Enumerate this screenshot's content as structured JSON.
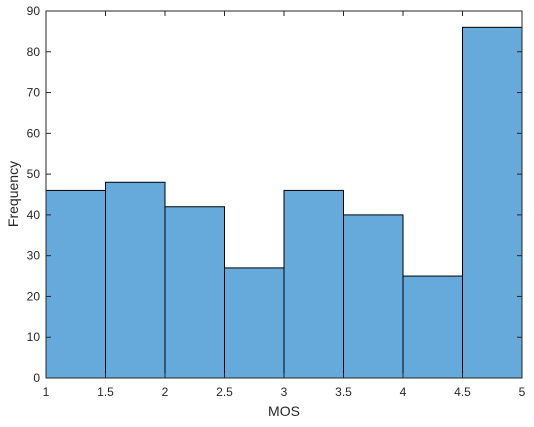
{
  "chart_data": {
    "type": "bar",
    "subtype": "histogram",
    "title": "",
    "xlabel": "MOS",
    "ylabel": "Frequency",
    "bin_edges": [
      1,
      1.5,
      2,
      2.5,
      3,
      3.5,
      4,
      4.5,
      5
    ],
    "values": [
      46,
      48,
      42,
      27,
      46,
      40,
      25,
      86
    ],
    "xlim": [
      1,
      5
    ],
    "ylim": [
      0,
      90
    ],
    "x_ticks": [
      "1",
      "1.5",
      "2",
      "2.5",
      "3",
      "3.5",
      "4",
      "4.5",
      "5"
    ],
    "y_ticks": [
      "0",
      "10",
      "20",
      "30",
      "40",
      "50",
      "60",
      "70",
      "80",
      "90"
    ],
    "bar_color": "#66AADB",
    "edge_color": "#000000",
    "grid": false,
    "box": true
  }
}
